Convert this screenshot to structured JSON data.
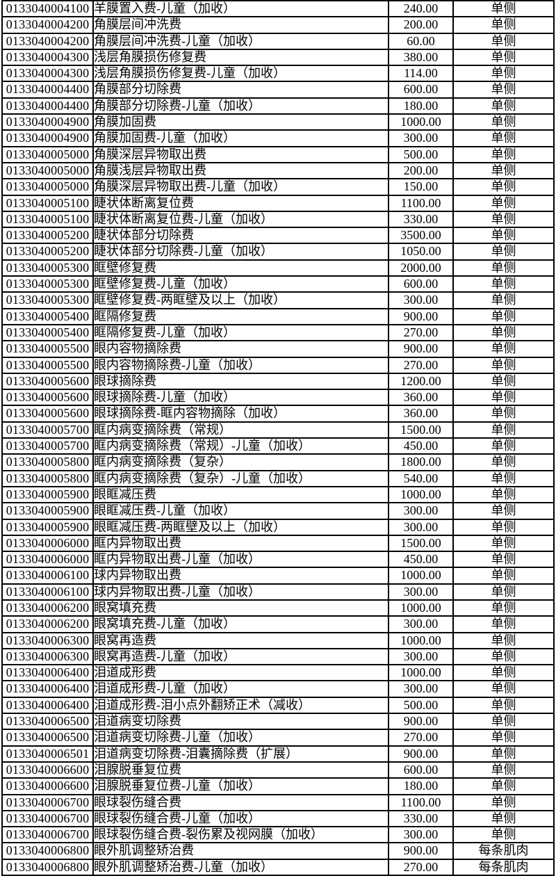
{
  "colors": {
    "background": "#ffffff",
    "border": "#000000",
    "text": "#000000"
  },
  "table": {
    "columns": [
      {
        "key": "code",
        "label": ""
      },
      {
        "key": "name",
        "label": ""
      },
      {
        "key": "price",
        "label": ""
      },
      {
        "key": "unit",
        "label": ""
      }
    ],
    "rows": [
      {
        "code": "0133040004100",
        "name": "羊膜置入费-儿童（加收）",
        "price": "240.00",
        "unit": "单侧"
      },
      {
        "code": "0133040004200",
        "name": "角膜层间冲洗费",
        "price": "200.00",
        "unit": "单侧"
      },
      {
        "code": "0133040004200",
        "name": "角膜层间冲洗费-儿童（加收）",
        "price": "60.00",
        "unit": "单侧"
      },
      {
        "code": "0133040004300",
        "name": "浅层角膜损伤修复费",
        "price": "380.00",
        "unit": "单侧"
      },
      {
        "code": "0133040004300",
        "name": "浅层角膜损伤修复费-儿童（加收）",
        "price": "114.00",
        "unit": "单侧"
      },
      {
        "code": "0133040004400",
        "name": "角膜部分切除费",
        "price": "600.00",
        "unit": "单侧"
      },
      {
        "code": "0133040004400",
        "name": "角膜部分切除费-儿童（加收）",
        "price": "180.00",
        "unit": "单侧"
      },
      {
        "code": "0133040004900",
        "name": "角膜加固费",
        "price": "1000.00",
        "unit": "单侧"
      },
      {
        "code": "0133040004900",
        "name": "角膜加固费-儿童（加收）",
        "price": "300.00",
        "unit": "单侧"
      },
      {
        "code": "0133040005000",
        "name": "角膜深层异物取出费",
        "price": "500.00",
        "unit": "单侧"
      },
      {
        "code": "0133040005000",
        "name": "角膜浅层异物取出费",
        "price": "200.00",
        "unit": "单侧"
      },
      {
        "code": "0133040005000",
        "name": "角膜深层异物取出费-儿童（加收）",
        "price": "150.00",
        "unit": "单侧"
      },
      {
        "code": "0133040005100",
        "name": "睫状体断离复位费",
        "price": "1100.00",
        "unit": "单侧"
      },
      {
        "code": "0133040005100",
        "name": "睫状体断离复位费-儿童（加收）",
        "price": "330.00",
        "unit": "单侧"
      },
      {
        "code": "0133040005200",
        "name": "睫状体部分切除费",
        "price": "3500.00",
        "unit": "单侧"
      },
      {
        "code": "0133040005200",
        "name": "睫状体部分切除费-儿童（加收）",
        "price": "1050.00",
        "unit": "单侧"
      },
      {
        "code": "0133040005300",
        "name": "眶壁修复费",
        "price": "2000.00",
        "unit": "单侧"
      },
      {
        "code": "0133040005300",
        "name": "眶壁修复费-儿童（加收）",
        "price": "600.00",
        "unit": "单侧"
      },
      {
        "code": "0133040005300",
        "name": "眶壁修复费-两眶壁及以上（加收）",
        "price": "300.00",
        "unit": "单侧"
      },
      {
        "code": "0133040005400",
        "name": "眶隔修复费",
        "price": "900.00",
        "unit": "单侧"
      },
      {
        "code": "0133040005400",
        "name": "眶隔修复费-儿童（加收）",
        "price": "270.00",
        "unit": "单侧"
      },
      {
        "code": "0133040005500",
        "name": "眼内容物摘除费",
        "price": "900.00",
        "unit": "单侧"
      },
      {
        "code": "0133040005500",
        "name": "眼内容物摘除费-儿童（加收）",
        "price": "270.00",
        "unit": "单侧"
      },
      {
        "code": "0133040005600",
        "name": "眼球摘除费",
        "price": "1200.00",
        "unit": "单侧"
      },
      {
        "code": "0133040005600",
        "name": "眼球摘除费-儿童（加收）",
        "price": "360.00",
        "unit": "单侧"
      },
      {
        "code": "0133040005600",
        "name": "眼球摘除费-眶内容物摘除（加收）",
        "price": "360.00",
        "unit": "单侧"
      },
      {
        "code": "0133040005700",
        "name": "眶内病变摘除费（常规）",
        "price": "1500.00",
        "unit": "单侧"
      },
      {
        "code": "0133040005700",
        "name": "眶内病变摘除费（常规）-儿童（加收）",
        "price": "450.00",
        "unit": "单侧"
      },
      {
        "code": "0133040005800",
        "name": "眶内病变摘除费（复杂）",
        "price": "1800.00",
        "unit": "单侧"
      },
      {
        "code": "0133040005800",
        "name": "眶内病变摘除费（复杂）-儿童（加收）",
        "price": "540.00",
        "unit": "单侧"
      },
      {
        "code": "0133040005900",
        "name": "眼眶减压费",
        "price": "1000.00",
        "unit": "单侧"
      },
      {
        "code": "0133040005900",
        "name": "眼眶减压费-儿童（加收）",
        "price": "300.00",
        "unit": "单侧"
      },
      {
        "code": "0133040005900",
        "name": "眼眶减压费-两眶壁及以上（加收）",
        "price": "300.00",
        "unit": "单侧"
      },
      {
        "code": "0133040006000",
        "name": "眶内异物取出费",
        "price": "1500.00",
        "unit": "单侧"
      },
      {
        "code": "0133040006000",
        "name": "眶内异物取出费-儿童（加收）",
        "price": "450.00",
        "unit": "单侧"
      },
      {
        "code": "0133040006100",
        "name": "球内异物取出费",
        "price": "1000.00",
        "unit": "单侧"
      },
      {
        "code": "0133040006100",
        "name": "球内异物取出费-儿童（加收）",
        "price": "300.00",
        "unit": "单侧"
      },
      {
        "code": "0133040006200",
        "name": "眼窝填充费",
        "price": "1000.00",
        "unit": "单侧"
      },
      {
        "code": "0133040006200",
        "name": "眼窝填充费-儿童（加收）",
        "price": "300.00",
        "unit": "单侧"
      },
      {
        "code": "0133040006300",
        "name": "眼窝再造费",
        "price": "1000.00",
        "unit": "单侧"
      },
      {
        "code": "0133040006300",
        "name": "眼窝再造费-儿童（加收）",
        "price": "300.00",
        "unit": "单侧"
      },
      {
        "code": "0133040006400",
        "name": "泪道成形费",
        "price": "1000.00",
        "unit": "单侧"
      },
      {
        "code": "0133040006400",
        "name": "泪道成形费-儿童（加收）",
        "price": "300.00",
        "unit": "单侧"
      },
      {
        "code": "0133040006400",
        "name": "泪道成形费-泪小点外翻矫正术（减收）",
        "price": "500.00",
        "unit": "单侧"
      },
      {
        "code": "0133040006500",
        "name": "泪道病变切除费",
        "price": "900.00",
        "unit": "单侧"
      },
      {
        "code": "0133040006500",
        "name": "泪道病变切除费-儿童（加收）",
        "price": "270.00",
        "unit": "单侧"
      },
      {
        "code": "0133040006501",
        "name": "泪道病变切除费-泪囊摘除费（扩展）",
        "price": "900.00",
        "unit": "单侧"
      },
      {
        "code": "0133040006600",
        "name": "泪腺脱垂复位费",
        "price": "600.00",
        "unit": "单侧"
      },
      {
        "code": "0133040006600",
        "name": "泪腺脱垂复位费-儿童（加收）",
        "price": "180.00",
        "unit": "单侧"
      },
      {
        "code": "0133040006700",
        "name": "眼球裂伤缝合费",
        "price": "1100.00",
        "unit": "单侧"
      },
      {
        "code": "0133040006700",
        "name": "眼球裂伤缝合费-儿童（加收）",
        "price": "330.00",
        "unit": "单侧"
      },
      {
        "code": "0133040006700",
        "name": "眼球裂伤缝合费-裂伤累及视网膜（加收）",
        "price": "300.00",
        "unit": "单侧"
      },
      {
        "code": "0133040006800",
        "name": "眼外肌调整矫治费",
        "price": "900.00",
        "unit": "每条肌肉"
      },
      {
        "code": "0133040006800",
        "name": "眼外肌调整矫治费-儿童（加收）",
        "price": "270.00",
        "unit": "每条肌肉"
      }
    ]
  }
}
